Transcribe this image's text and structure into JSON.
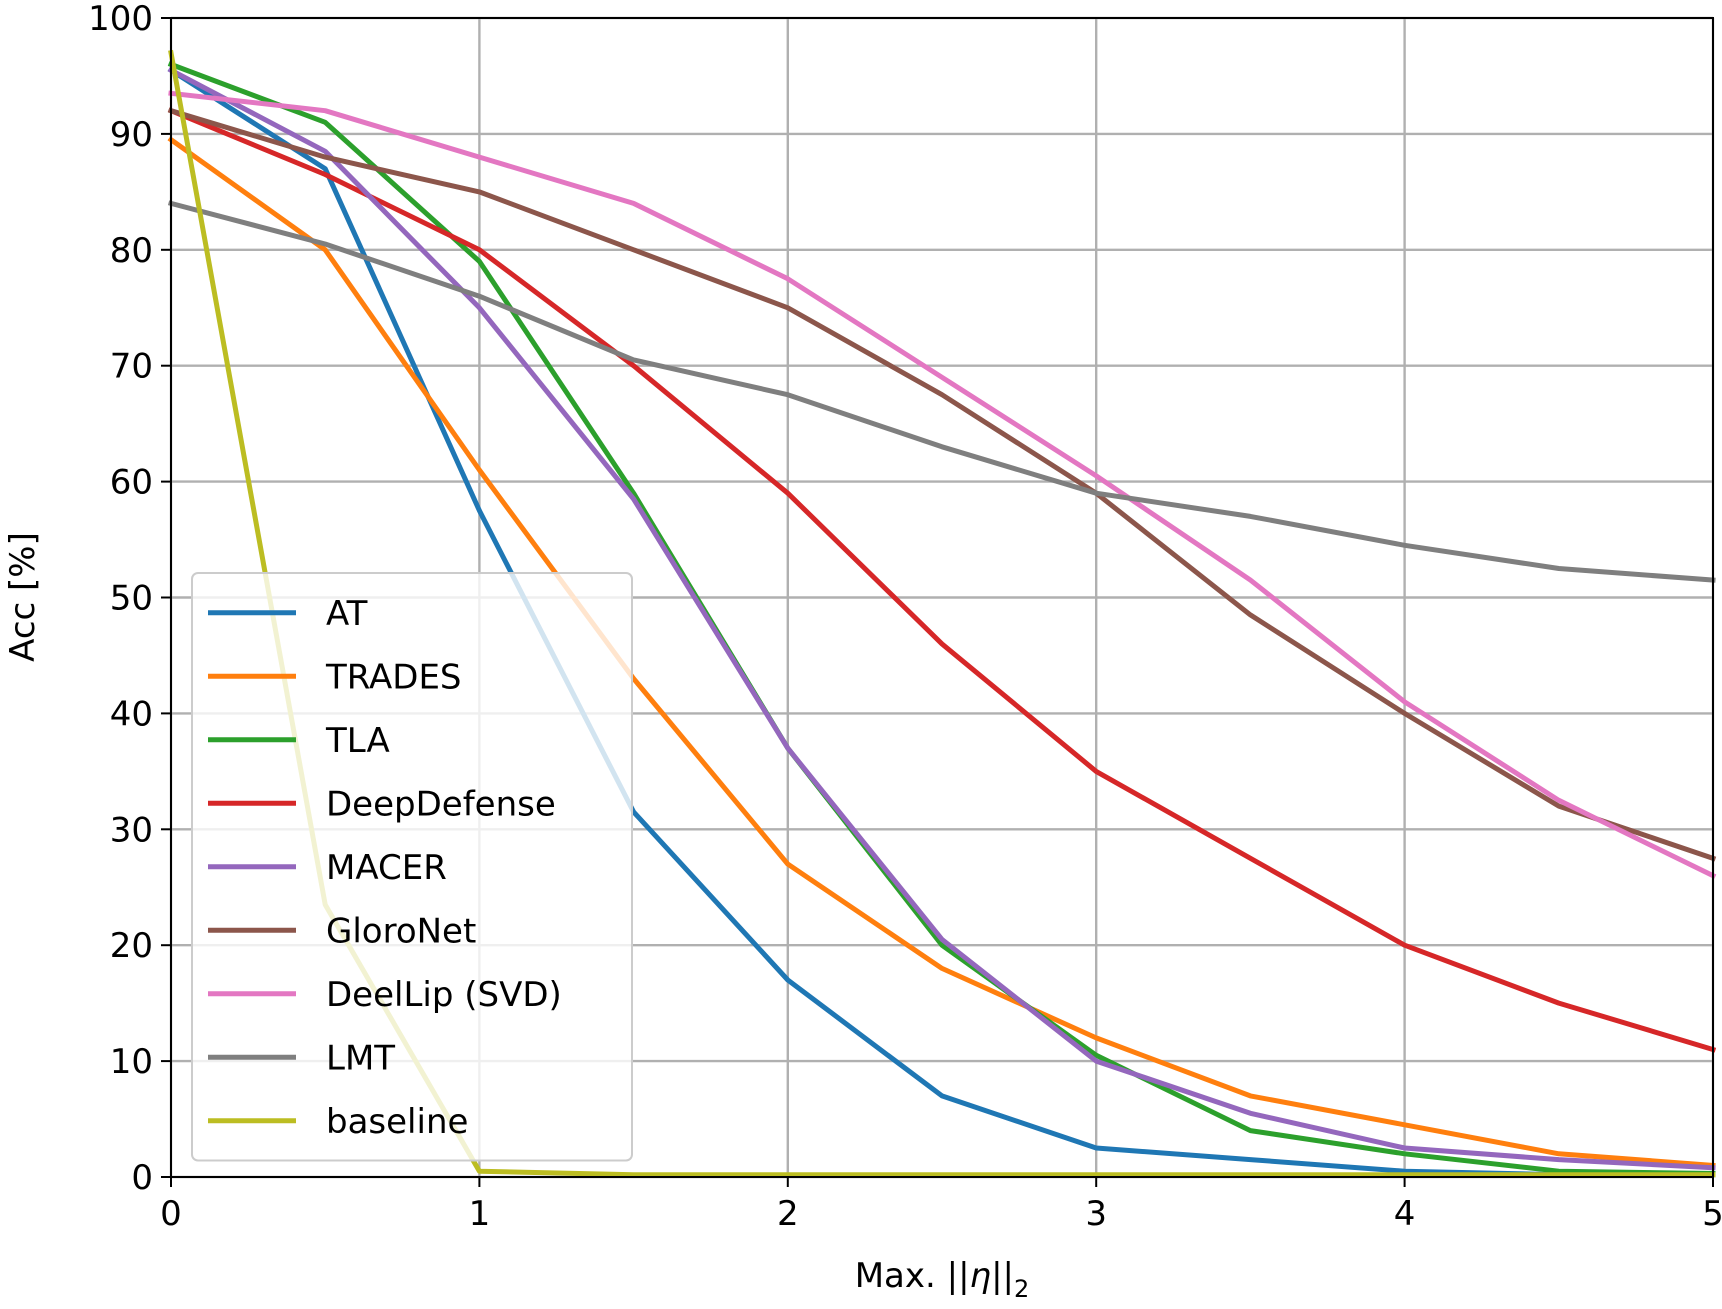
{
  "chart_data": {
    "type": "line",
    "xlabel_prefix": "Max. ",
    "xlabel_math": "||η||",
    "xlabel_sub": "2",
    "ylabel": "Acc [%]",
    "xlim": [
      0,
      5
    ],
    "ylim": [
      0,
      100
    ],
    "xticks": [
      "0",
      "1",
      "2",
      "3",
      "4",
      "5"
    ],
    "yticks": [
      "0",
      "10",
      "20",
      "30",
      "40",
      "50",
      "60",
      "70",
      "80",
      "90",
      "100"
    ],
    "grid": true,
    "legend_position": "lower-left",
    "x": [
      0,
      0.5,
      1,
      1.5,
      2,
      2.5,
      3,
      3.5,
      4,
      4.5,
      5
    ],
    "series": [
      {
        "name": "AT",
        "color": "#1f77b4",
        "values": [
          95.5,
          87,
          57.5,
          31.5,
          17,
          7,
          2.5,
          1.5,
          0.5,
          0.2,
          0.2
        ]
      },
      {
        "name": "TRADES",
        "color": "#ff7f0e",
        "values": [
          89.5,
          80,
          61,
          43,
          27,
          18,
          12,
          7,
          4.5,
          2,
          1
        ]
      },
      {
        "name": "TLA",
        "color": "#2ca02c",
        "values": [
          96,
          91,
          79,
          59,
          37,
          20,
          10.5,
          4,
          2,
          0.5,
          0.3
        ]
      },
      {
        "name": "DeepDefense",
        "color": "#d62728",
        "values": [
          92,
          86.5,
          80,
          70,
          59,
          46,
          35,
          27.5,
          20,
          15,
          11
        ]
      },
      {
        "name": "MACER",
        "color": "#9467bd",
        "values": [
          95.5,
          88.5,
          75,
          58.5,
          37,
          20.5,
          10,
          5.5,
          2.5,
          1.5,
          0.8
        ]
      },
      {
        "name": "GloroNet",
        "color": "#8c564b",
        "values": [
          92,
          88,
          85,
          80,
          75,
          67.5,
          59,
          48.5,
          40,
          32,
          27.5
        ]
      },
      {
        "name": "DeelLip (SVD)",
        "color": "#e377c2",
        "values": [
          93.5,
          92,
          88,
          84,
          77.5,
          69,
          60.5,
          51.5,
          41,
          32.5,
          26
        ]
      },
      {
        "name": "LMT",
        "color": "#7f7f7f",
        "values": [
          84,
          80.5,
          76,
          70.5,
          67.5,
          63,
          59,
          57,
          54.5,
          52.5,
          51.5
        ]
      },
      {
        "name": "baseline",
        "color": "#bcbd22",
        "values": [
          97,
          23.5,
          0.5,
          0.2,
          0.2,
          0.2,
          0.2,
          0.2,
          0.2,
          0.2,
          0.2
        ]
      }
    ]
  }
}
